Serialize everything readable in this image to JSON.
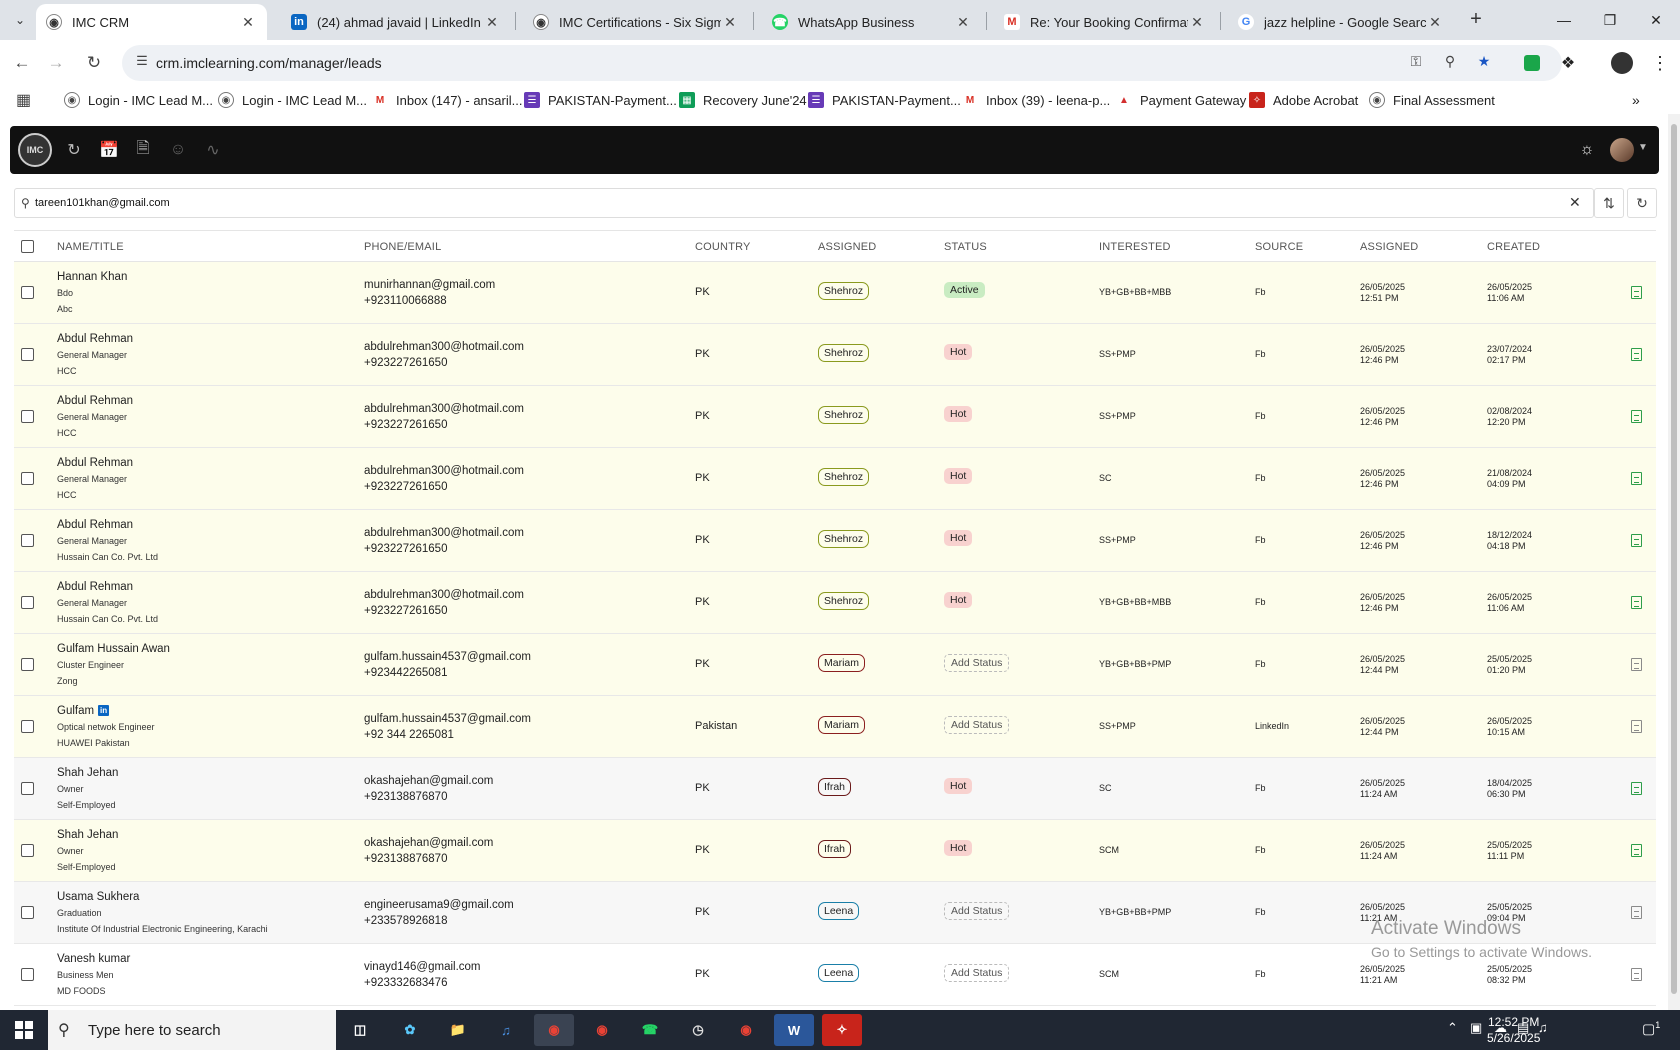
{
  "browser": {
    "tabs": [
      {
        "title": "IMC CRM",
        "icon": "imc-logo-icon",
        "active": true
      },
      {
        "title": "(24) ahmad javaid | LinkedIn",
        "icon": "linkedin-icon",
        "active": false
      },
      {
        "title": "IMC Certifications - Six Sigma C",
        "icon": "imc-logo-icon",
        "active": false
      },
      {
        "title": "WhatsApp Business",
        "icon": "whatsapp-icon",
        "active": false
      },
      {
        "title": "Re: Your Booking Confirmation",
        "icon": "gmail-icon",
        "active": false
      },
      {
        "title": "jazz helpline - Google Search",
        "icon": "google-icon",
        "active": false
      }
    ],
    "url": "crm.imclearning.com/manager/leads",
    "bookmarks": [
      {
        "label": "Login - IMC Lead M...",
        "icon": "imc-logo-icon"
      },
      {
        "label": "Login - IMC Lead M...",
        "icon": "imc-logo-icon"
      },
      {
        "label": "Inbox (147) - ansaril...",
        "icon": "gmail-icon"
      },
      {
        "label": "PAKISTAN-Payment...",
        "icon": "forms-icon"
      },
      {
        "label": "Recovery June'24",
        "icon": "sheets-icon"
      },
      {
        "label": "PAKISTAN-Payment...",
        "icon": "forms-icon"
      },
      {
        "label": "Inbox (39) - leena-p...",
        "icon": "gmail-icon"
      },
      {
        "label": "Payment Gateway",
        "icon": "payment-gateway-icon"
      },
      {
        "label": "Adobe Acrobat",
        "icon": "acrobat-icon"
      },
      {
        "label": "Final Assessment",
        "icon": "imc-logo-icon"
      }
    ]
  },
  "search": {
    "value": "tareen101khan@gmail.com"
  },
  "table": {
    "headers": {
      "name": "NAME/TITLE",
      "contact": "PHONE/EMAIL",
      "country": "COUNTRY",
      "assigned": "ASSIGNED",
      "status": "STATUS",
      "interested": "INTERESTED",
      "source": "SOURCE",
      "assigned_date": "ASSIGNED",
      "created": "CREATED"
    },
    "rows": [
      {
        "name": "Hannan Khan",
        "title": "Bdo",
        "company": "Abc",
        "linkedin": false,
        "email": "munirhannan@gmail.com",
        "phone": "+923110066888",
        "country": "PK",
        "assigned": "Shehroz",
        "status": "Active",
        "status_type": "active",
        "interested": "YB+GB+BB+MBB",
        "source": "Fb",
        "assigned_date": "26/05/2025",
        "assigned_time": "12:51 PM",
        "created_date": "26/05/2025",
        "created_time": "11:06 AM",
        "bg": "yellow",
        "doc": "green"
      },
      {
        "name": "Abdul Rehman",
        "title": "General Manager",
        "company": "HCC",
        "linkedin": false,
        "email": "abdulrehman300@hotmail.com",
        "phone": "+923227261650",
        "country": "PK",
        "assigned": "Shehroz",
        "status": "Hot",
        "status_type": "hot",
        "interested": "SS+PMP",
        "source": "Fb",
        "assigned_date": "26/05/2025",
        "assigned_time": "12:46 PM",
        "created_date": "23/07/2024",
        "created_time": "02:17 PM",
        "bg": "yellow",
        "doc": "green"
      },
      {
        "name": "Abdul Rehman",
        "title": "General Manager",
        "company": "HCC",
        "linkedin": false,
        "email": "abdulrehman300@hotmail.com",
        "phone": "+923227261650",
        "country": "PK",
        "assigned": "Shehroz",
        "status": "Hot",
        "status_type": "hot",
        "interested": "SS+PMP",
        "source": "Fb",
        "assigned_date": "26/05/2025",
        "assigned_time": "12:46 PM",
        "created_date": "02/08/2024",
        "created_time": "12:20 PM",
        "bg": "yellow",
        "doc": "green"
      },
      {
        "name": "Abdul Rehman",
        "title": "General Manager",
        "company": "HCC",
        "linkedin": false,
        "email": "abdulrehman300@hotmail.com",
        "phone": "+923227261650",
        "country": "PK",
        "assigned": "Shehroz",
        "status": "Hot",
        "status_type": "hot",
        "interested": "SC",
        "source": "Fb",
        "assigned_date": "26/05/2025",
        "assigned_time": "12:46 PM",
        "created_date": "21/08/2024",
        "created_time": "04:09 PM",
        "bg": "yellow",
        "doc": "green"
      },
      {
        "name": "Abdul Rehman",
        "title": "General Manager",
        "company": "Hussain Can Co. Pvt. Ltd",
        "linkedin": false,
        "email": "abdulrehman300@hotmail.com",
        "phone": "+923227261650",
        "country": "PK",
        "assigned": "Shehroz",
        "status": "Hot",
        "status_type": "hot",
        "interested": "SS+PMP",
        "source": "Fb",
        "assigned_date": "26/05/2025",
        "assigned_time": "12:46 PM",
        "created_date": "18/12/2024",
        "created_time": "04:18 PM",
        "bg": "yellow",
        "doc": "green"
      },
      {
        "name": "Abdul Rehman",
        "title": "General Manager",
        "company": "Hussain Can Co. Pvt. Ltd",
        "linkedin": false,
        "email": "abdulrehman300@hotmail.com",
        "phone": "+923227261650",
        "country": "PK",
        "assigned": "Shehroz",
        "status": "Hot",
        "status_type": "hot",
        "interested": "YB+GB+BB+MBB",
        "source": "Fb",
        "assigned_date": "26/05/2025",
        "assigned_time": "12:46 PM",
        "created_date": "26/05/2025",
        "created_time": "11:06 AM",
        "bg": "yellow",
        "doc": "green"
      },
      {
        "name": "Gulfam Hussain Awan",
        "title": "Cluster Engineer",
        "company": "Zong",
        "linkedin": false,
        "email": "gulfam.hussain4537@gmail.com",
        "phone": "+923442265081",
        "country": "PK",
        "assigned": "Mariam",
        "status": "Add Status",
        "status_type": "add",
        "interested": "YB+GB+BB+PMP",
        "source": "Fb",
        "assigned_date": "26/05/2025",
        "assigned_time": "12:44 PM",
        "created_date": "25/05/2025",
        "created_time": "01:20 PM",
        "bg": "yellow",
        "doc": "grey"
      },
      {
        "name": "Gulfam",
        "title": "Optical netwok Engineer",
        "company": "HUAWEI Pakistan",
        "linkedin": true,
        "email": "gulfam.hussain4537@gmail.com",
        "phone": "+92 344 2265081",
        "country": "Pakistan",
        "assigned": "Mariam",
        "status": "Add Status",
        "status_type": "add",
        "interested": "SS+PMP",
        "source": "LinkedIn",
        "assigned_date": "26/05/2025",
        "assigned_time": "12:44 PM",
        "created_date": "26/05/2025",
        "created_time": "10:15 AM",
        "bg": "yellow",
        "doc": "grey"
      },
      {
        "name": "Shah Jehan",
        "title": "Owner",
        "company": "Self-Employed",
        "linkedin": false,
        "email": "okashajehan@gmail.com",
        "phone": "+923138876870",
        "country": "PK",
        "assigned": "Ifrah",
        "status": "Hot",
        "status_type": "hot",
        "interested": "SC",
        "source": "Fb",
        "assigned_date": "26/05/2025",
        "assigned_time": "11:24 AM",
        "created_date": "18/04/2025",
        "created_time": "06:30 PM",
        "bg": "gray",
        "doc": "green"
      },
      {
        "name": "Shah Jehan",
        "title": "Owner",
        "company": "Self-Employed",
        "linkedin": false,
        "email": "okashajehan@gmail.com",
        "phone": "+923138876870",
        "country": "PK",
        "assigned": "Ifrah",
        "status": "Hot",
        "status_type": "hot",
        "interested": "SCM",
        "source": "Fb",
        "assigned_date": "26/05/2025",
        "assigned_time": "11:24 AM",
        "created_date": "25/05/2025",
        "created_time": "11:11 PM",
        "bg": "yellow",
        "doc": "green"
      },
      {
        "name": "Usama Sukhera",
        "title": "Graduation",
        "company": "Institute Of Industrial Electronic Engineering, Karachi",
        "linkedin": false,
        "email": "engineerusama9@gmail.com",
        "phone": "+233578926818",
        "country": "PK",
        "assigned": "Leena",
        "status": "Add Status",
        "status_type": "add",
        "interested": "YB+GB+BB+PMP",
        "source": "Fb",
        "assigned_date": "26/05/2025",
        "assigned_time": "11:21 AM",
        "created_date": "25/05/2025",
        "created_time": "09:04 PM",
        "bg": "gray",
        "doc": "grey"
      },
      {
        "name": "Vanesh kumar",
        "title": "Business Men",
        "company": "MD FOODS",
        "linkedin": false,
        "email": "vinayd146@gmail.com",
        "phone": "+923332683476",
        "country": "PK",
        "assigned": "Leena",
        "status": "Add Status",
        "status_type": "add",
        "interested": "SCM",
        "source": "Fb",
        "assigned_date": "26/05/2025",
        "assigned_time": "11:21 AM",
        "created_date": "25/05/2025",
        "created_time": "08:32 PM",
        "bg": "white",
        "doc": "grey"
      }
    ]
  },
  "assignee_colors": {
    "Shehroz": "#8a9a1e",
    "Mariam": "#8b1f1f",
    "Ifrah": "#6b1a1a",
    "Leena": "#1a7fa8"
  },
  "watermark": {
    "line1": "Activate Windows",
    "line2": "Go to Settings to activate Windows."
  },
  "taskbar": {
    "search_placeholder": "Type here to search",
    "time": "12:52 PM",
    "date": "5/26/2025",
    "notifications": "1"
  }
}
